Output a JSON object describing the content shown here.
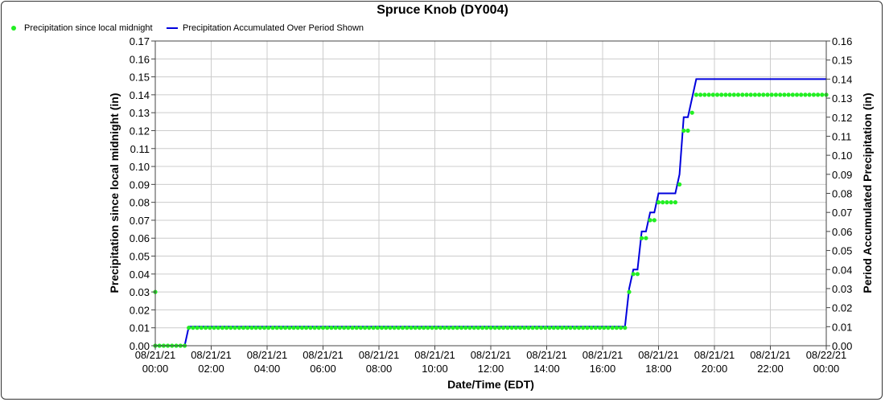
{
  "chart_data": {
    "type": "line",
    "title": "Spruce Knob (DY004)",
    "xlabel": "Date/Time (EDT)",
    "ylabel_left": "Precipitation since local midnight (in)",
    "ylabel_right": "Period Accumulated Precipitation (in)",
    "ylim_left": [
      0,
      0.17
    ],
    "ylim_right": [
      0,
      0.16
    ],
    "xlim_hours": [
      0,
      24
    ],
    "grid": true,
    "legend_placement": "top-left",
    "x_ticks": [
      {
        "date": "08/21/21",
        "time": "00:00",
        "hour": 0
      },
      {
        "date": "08/21/21",
        "time": "02:00",
        "hour": 2
      },
      {
        "date": "08/21/21",
        "time": "04:00",
        "hour": 4
      },
      {
        "date": "08/21/21",
        "time": "06:00",
        "hour": 6
      },
      {
        "date": "08/21/21",
        "time": "08:00",
        "hour": 8
      },
      {
        "date": "08/21/21",
        "time": "10:00",
        "hour": 10
      },
      {
        "date": "08/21/21",
        "time": "12:00",
        "hour": 12
      },
      {
        "date": "08/21/21",
        "time": "14:00",
        "hour": 14
      },
      {
        "date": "08/21/21",
        "time": "16:00",
        "hour": 16
      },
      {
        "date": "08/21/21",
        "time": "18:00",
        "hour": 18
      },
      {
        "date": "08/21/21",
        "time": "20:00",
        "hour": 20
      },
      {
        "date": "08/21/21",
        "time": "22:00",
        "hour": 22
      },
      {
        "date": "08/22/21",
        "time": "00:00",
        "hour": 24
      }
    ],
    "y_ticks_left": [
      "0.00",
      "0.01",
      "0.02",
      "0.03",
      "0.04",
      "0.05",
      "0.06",
      "0.07",
      "0.08",
      "0.09",
      "0.10",
      "0.11",
      "0.12",
      "0.13",
      "0.14",
      "0.15",
      "0.16",
      "0.17"
    ],
    "y_ticks_right": [
      "0.00",
      "0.01",
      "0.02",
      "0.03",
      "0.04",
      "0.05",
      "0.06",
      "0.07",
      "0.08",
      "0.09",
      "0.10",
      "0.11",
      "0.12",
      "0.13",
      "0.14",
      "0.15",
      "0.16"
    ],
    "series": [
      {
        "name": "Precipitation since local midnight",
        "kind": "points",
        "color": "#22ee22",
        "axis": "left",
        "points": [
          [
            0.0,
            0.03
          ],
          [
            0.0,
            0.0
          ],
          [
            0.15,
            0.0
          ],
          [
            0.3,
            0.0
          ],
          [
            0.45,
            0.0
          ],
          [
            0.6,
            0.0
          ],
          [
            0.75,
            0.0
          ],
          [
            0.9,
            0.0
          ],
          [
            1.05,
            0.0
          ],
          {
            "from": 1.2,
            "to": 16.8,
            "step": 0.15,
            "value": 0.01
          },
          [
            16.95,
            0.03
          ],
          [
            17.1,
            0.04
          ],
          [
            17.25,
            0.04
          ],
          [
            17.4,
            0.06
          ],
          [
            17.55,
            0.06
          ],
          [
            17.7,
            0.07
          ],
          [
            17.85,
            0.07
          ],
          [
            18.0,
            0.08
          ],
          [
            18.15,
            0.08
          ],
          [
            18.3,
            0.08
          ],
          [
            18.45,
            0.08
          ],
          [
            18.6,
            0.08
          ],
          [
            18.75,
            0.09
          ],
          [
            18.9,
            0.12
          ],
          [
            19.05,
            0.12
          ],
          [
            19.2,
            0.13
          ],
          {
            "from": 19.35,
            "to": 24.0,
            "step": 0.15,
            "value": 0.14
          }
        ]
      },
      {
        "name": "Precipitation Accumulated Over Period Shown",
        "kind": "line",
        "color": "#0000dd",
        "axis": "right",
        "points": [
          [
            0.0,
            0.0
          ],
          [
            1.05,
            0.0
          ],
          [
            1.2,
            0.01
          ],
          [
            16.8,
            0.01
          ],
          [
            16.95,
            0.03
          ],
          [
            17.1,
            0.04
          ],
          [
            17.25,
            0.04
          ],
          [
            17.4,
            0.06
          ],
          [
            17.55,
            0.06
          ],
          [
            17.7,
            0.07
          ],
          [
            17.85,
            0.07
          ],
          [
            18.0,
            0.08
          ],
          [
            18.6,
            0.08
          ],
          [
            18.75,
            0.09
          ],
          [
            18.9,
            0.12
          ],
          [
            19.05,
            0.12
          ],
          [
            19.2,
            0.13
          ],
          [
            19.35,
            0.14
          ],
          [
            24.0,
            0.14
          ]
        ]
      }
    ]
  }
}
